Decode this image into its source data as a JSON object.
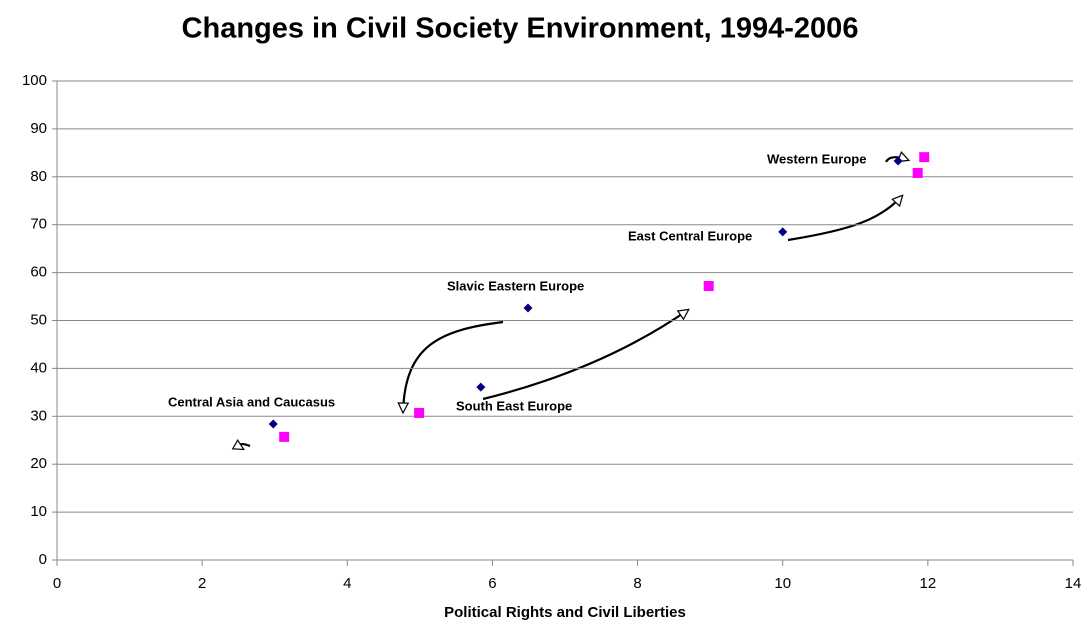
{
  "chart_data": {
    "type": "scatter",
    "title": "Changes in Civil Society Environment, 1994-2006",
    "x_label": "Political Rights and Civil Liberties",
    "series": [
      {
        "color": "#000080",
        "marker": "diamond",
        "x": [
          2.98,
          5.84,
          6.49,
          10.0,
          11.59
        ],
        "values": [
          28.4,
          36.1,
          52.6,
          68.5,
          83.3
        ]
      },
      {
        "color": "#ff00ff",
        "marker": "square",
        "x": [
          3.13,
          4.99,
          8.98,
          11.86,
          11.95
        ],
        "values": [
          25.7,
          30.7,
          57.2,
          80.8,
          84.1
        ]
      }
    ],
    "annotations": [
      "Western Europe",
      "East Central Europe",
      "Slavic Eastern Europe",
      "Central Asia and Caucasus",
      "South East Europe"
    ],
    "xlim": [
      0,
      14
    ],
    "xticks": [
      0,
      2,
      4,
      6,
      8,
      10,
      12,
      14
    ],
    "ylim": [
      0,
      100
    ],
    "yticks": [
      0,
      10,
      20,
      30,
      40,
      50,
      60,
      70,
      80,
      90,
      100
    ],
    "grid": true
  }
}
